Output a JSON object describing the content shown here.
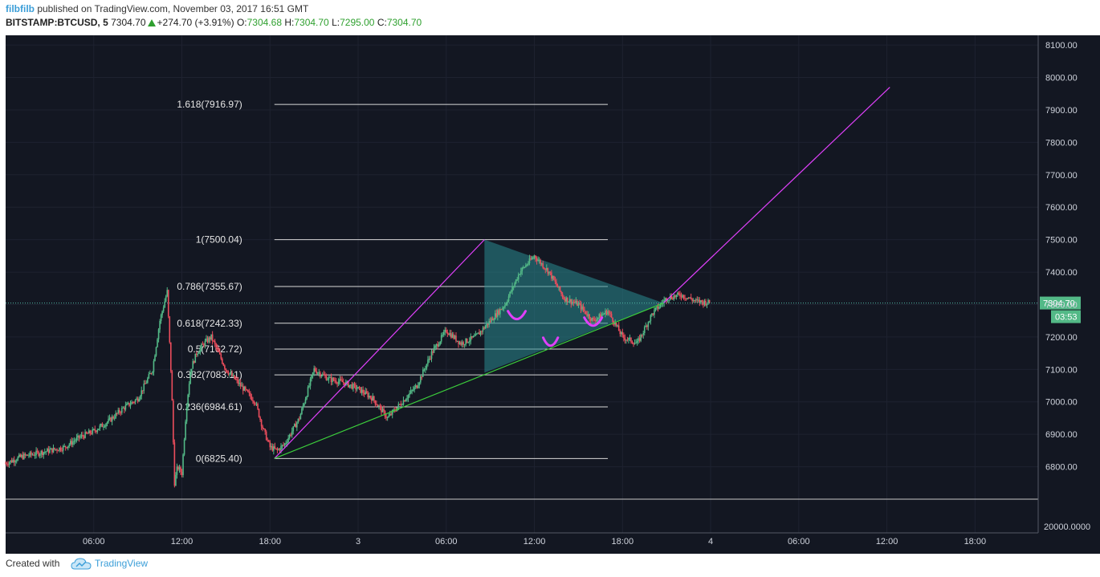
{
  "header": {
    "author": "filbfilb",
    "published_text": " published on TradingView.com, November 03, 2017 16:51 GMT",
    "symbol": "BITSTAMP:BTCUSD, 5",
    "last": "7304.70",
    "change": "+274.70 (+3.91%)",
    "o_label": "O:",
    "o_value": "7304.68",
    "h_label": "H:",
    "h_value": "7304.70",
    "l_label": "L:",
    "l_value": "7295.00",
    "c_label": "C:",
    "c_value": "7304.70"
  },
  "footer": {
    "created_with": "Created with",
    "brand": "TradingView",
    "brand_icon": "tradingview-cloud-icon"
  },
  "colors": {
    "background": "#131722",
    "up": "#53b987",
    "down": "#eb4d5c",
    "magenta": "#e040fb",
    "green_line": "#3ccf3c",
    "triangle_fill": "#2a8b8f",
    "fib_line": "#d8d8d8",
    "price_label": "#53b987"
  },
  "chart_data": {
    "type": "candlestick",
    "symbol": "BITSTAMP:BTCUSD",
    "interval": "5",
    "y_range": [
      6700,
      8130
    ],
    "y_ticks": [
      8100,
      8000,
      7900,
      7800,
      7700,
      7600,
      7500,
      7400,
      7300,
      7200,
      7100,
      7000,
      6900,
      6800
    ],
    "y_tick_labels": [
      "8100.00",
      "8000.00",
      "7900.00",
      "7800.00",
      "7700.00",
      "7600.00",
      "7500.00",
      "7400.00",
      "7300.00",
      "7200.00",
      "7100.00",
      "7000.00",
      "6900.00",
      "6800.00"
    ],
    "x_tick_labels": [
      "06:00",
      "12:00",
      "18:00",
      "3",
      "06:00",
      "12:00",
      "18:00",
      "4",
      "06:00",
      "12:00",
      "18:00"
    ],
    "x_tick_hours": [
      6,
      12,
      18,
      24,
      30,
      36,
      42,
      48,
      54,
      60,
      66
    ],
    "x_range_hours": [
      0,
      70.3
    ],
    "current_price": "7304.70",
    "countdown": "03:53",
    "volume_scale_label": "20000.0000",
    "price_path": [
      [
        0,
        6810
      ],
      [
        1,
        6830
      ],
      [
        2,
        6840
      ],
      [
        3,
        6850
      ],
      [
        4,
        6860
      ],
      [
        5,
        6890
      ],
      [
        6,
        6910
      ],
      [
        7,
        6940
      ],
      [
        8,
        6980
      ],
      [
        9,
        7010
      ],
      [
        10,
        7100
      ],
      [
        10.5,
        7250
      ],
      [
        11,
        7340
      ],
      [
        11.3,
        7050
      ],
      [
        11.5,
        6750
      ],
      [
        11.7,
        6800
      ],
      [
        12,
        6780
      ],
      [
        12.3,
        6980
      ],
      [
        12.6,
        7100
      ],
      [
        13,
        7150
      ],
      [
        13.5,
        7180
      ],
      [
        14,
        7200
      ],
      [
        15,
        7100
      ],
      [
        16,
        7050
      ],
      [
        17,
        7000
      ],
      [
        17.5,
        6920
      ],
      [
        18,
        6860
      ],
      [
        18.5,
        6850
      ],
      [
        19,
        6870
      ],
      [
        20,
        6950
      ],
      [
        21,
        7100
      ],
      [
        22,
        7070
      ],
      [
        23,
        7060
      ],
      [
        24,
        7040
      ],
      [
        25,
        7010
      ],
      [
        26,
        6950
      ],
      [
        27,
        7000
      ],
      [
        28,
        7050
      ],
      [
        29,
        7150
      ],
      [
        30,
        7220
      ],
      [
        31,
        7180
      ],
      [
        32,
        7200
      ],
      [
        33,
        7250
      ],
      [
        34,
        7300
      ],
      [
        35,
        7400
      ],
      [
        36,
        7450
      ],
      [
        37,
        7400
      ],
      [
        38,
        7320
      ],
      [
        39,
        7300
      ],
      [
        40,
        7250
      ],
      [
        41,
        7280
      ],
      [
        42,
        7200
      ],
      [
        43,
        7180
      ],
      [
        44,
        7270
      ],
      [
        45,
        7320
      ],
      [
        46,
        7330
      ],
      [
        47,
        7310
      ],
      [
        48,
        7305
      ]
    ],
    "fib_levels": [
      {
        "label": "1.618(7916.97)",
        "price": 7916.97
      },
      {
        "label": "1(7500.04)",
        "price": 7500.04
      },
      {
        "label": "0.786(7355.67)",
        "price": 7355.67
      },
      {
        "label": "0.618(7242.33)",
        "price": 7242.33
      },
      {
        "label": "0.5(7162.72)",
        "price": 7162.72
      },
      {
        "label": "0.382(7083.11)",
        "price": 7083.11
      },
      {
        "label": "0.236(6984.61)",
        "price": 6984.61
      },
      {
        "label": "0(6825.40)",
        "price": 6825.4
      }
    ],
    "fib_span_hours": [
      18.3,
      41.0
    ],
    "lines": [
      {
        "name": "impulse",
        "color": "magenta",
        "from": [
          18.3,
          6825.4
        ],
        "to": [
          32.6,
          7500.04
        ]
      },
      {
        "name": "projection",
        "color": "magenta",
        "from": [
          44.8,
          7304.7
        ],
        "to": [
          60.2,
          7970
        ]
      },
      {
        "name": "support",
        "color": "green_line",
        "from": [
          18.3,
          6825.4
        ],
        "to": [
          44.8,
          7304.7
        ]
      }
    ],
    "triangle": [
      [
        32.6,
        7500.04
      ],
      [
        32.6,
        7090
      ],
      [
        44.8,
        7304.7
      ]
    ],
    "arcs": [
      [
        34.2,
        7260,
        35.4
      ],
      [
        36.6,
        7178,
        37.6
      ],
      [
        39.4,
        7240,
        40.6
      ]
    ]
  }
}
